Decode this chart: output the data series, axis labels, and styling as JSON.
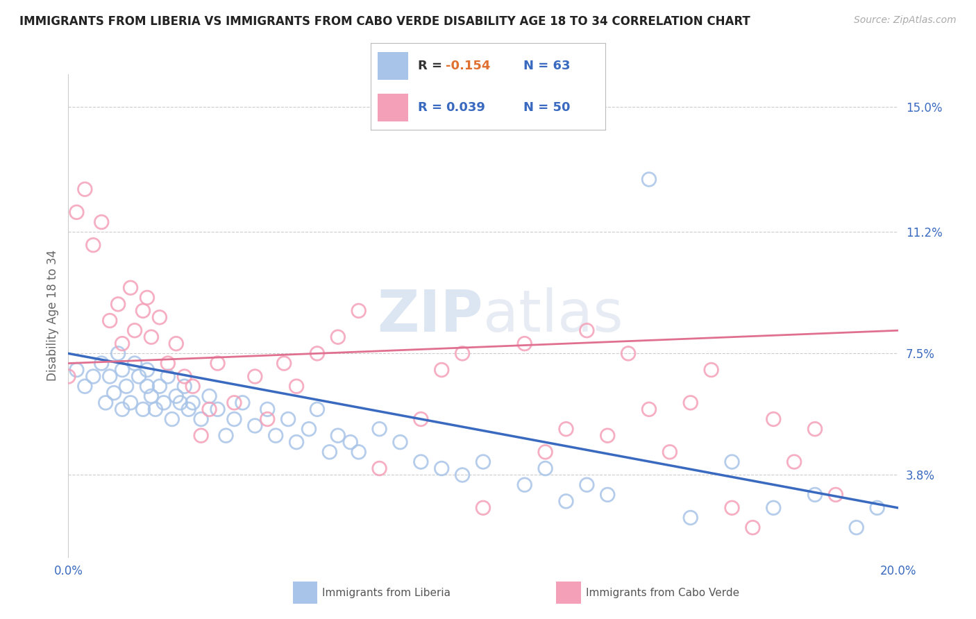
{
  "title": "IMMIGRANTS FROM LIBERIA VS IMMIGRANTS FROM CABO VERDE DISABILITY AGE 18 TO 34 CORRELATION CHART",
  "source": "Source: ZipAtlas.com",
  "ylabel": "Disability Age 18 to 34",
  "xlim": [
    0.0,
    0.2
  ],
  "ylim": [
    0.013,
    0.16
  ],
  "xticks": [
    0.0,
    0.04,
    0.08,
    0.12,
    0.16,
    0.2
  ],
  "xticklabels": [
    "0.0%",
    "",
    "",
    "",
    "",
    "20.0%"
  ],
  "ytick_positions": [
    0.038,
    0.075,
    0.112,
    0.15
  ],
  "ytick_labels": [
    "3.8%",
    "7.5%",
    "11.2%",
    "15.0%"
  ],
  "legend_r1": "R = -0.154",
  "legend_n1": "N = 63",
  "legend_r2": "R =  0.039",
  "legend_n2": "N = 50",
  "color_liberia": "#a8c4e8",
  "color_cabo_verde": "#f4a0b8",
  "color_text_blue": "#3a6abf",
  "color_r_value": "#e07030",
  "watermark_zip": "ZIP",
  "watermark_atlas": "atlas",
  "liberia_scatter_x": [
    0.002,
    0.004,
    0.006,
    0.008,
    0.009,
    0.01,
    0.011,
    0.012,
    0.013,
    0.013,
    0.014,
    0.015,
    0.016,
    0.017,
    0.018,
    0.019,
    0.019,
    0.02,
    0.021,
    0.022,
    0.023,
    0.024,
    0.025,
    0.026,
    0.027,
    0.028,
    0.029,
    0.03,
    0.032,
    0.034,
    0.036,
    0.038,
    0.04,
    0.042,
    0.045,
    0.048,
    0.05,
    0.053,
    0.055,
    0.058,
    0.06,
    0.063,
    0.065,
    0.068,
    0.07,
    0.075,
    0.08,
    0.085,
    0.09,
    0.095,
    0.1,
    0.11,
    0.115,
    0.12,
    0.125,
    0.13,
    0.14,
    0.15,
    0.16,
    0.17,
    0.18,
    0.19,
    0.195
  ],
  "liberia_scatter_y": [
    0.07,
    0.065,
    0.068,
    0.072,
    0.06,
    0.068,
    0.063,
    0.075,
    0.058,
    0.07,
    0.065,
    0.06,
    0.072,
    0.068,
    0.058,
    0.065,
    0.07,
    0.062,
    0.058,
    0.065,
    0.06,
    0.068,
    0.055,
    0.062,
    0.06,
    0.065,
    0.058,
    0.06,
    0.055,
    0.062,
    0.058,
    0.05,
    0.055,
    0.06,
    0.053,
    0.058,
    0.05,
    0.055,
    0.048,
    0.052,
    0.058,
    0.045,
    0.05,
    0.048,
    0.045,
    0.052,
    0.048,
    0.042,
    0.04,
    0.038,
    0.042,
    0.035,
    0.04,
    0.03,
    0.035,
    0.032,
    0.128,
    0.025,
    0.042,
    0.028,
    0.032,
    0.022,
    0.028
  ],
  "cabo_verde_scatter_x": [
    0.0,
    0.002,
    0.004,
    0.006,
    0.008,
    0.01,
    0.012,
    0.013,
    0.015,
    0.016,
    0.018,
    0.019,
    0.02,
    0.022,
    0.024,
    0.026,
    0.028,
    0.03,
    0.032,
    0.034,
    0.036,
    0.04,
    0.045,
    0.048,
    0.052,
    0.055,
    0.06,
    0.065,
    0.07,
    0.075,
    0.085,
    0.09,
    0.095,
    0.1,
    0.11,
    0.115,
    0.12,
    0.125,
    0.13,
    0.135,
    0.14,
    0.145,
    0.15,
    0.155,
    0.16,
    0.165,
    0.17,
    0.175,
    0.18,
    0.185
  ],
  "cabo_verde_scatter_y": [
    0.068,
    0.118,
    0.125,
    0.108,
    0.115,
    0.085,
    0.09,
    0.078,
    0.095,
    0.082,
    0.088,
    0.092,
    0.08,
    0.086,
    0.072,
    0.078,
    0.068,
    0.065,
    0.05,
    0.058,
    0.072,
    0.06,
    0.068,
    0.055,
    0.072,
    0.065,
    0.075,
    0.08,
    0.088,
    0.04,
    0.055,
    0.07,
    0.075,
    0.028,
    0.078,
    0.045,
    0.052,
    0.082,
    0.05,
    0.075,
    0.058,
    0.045,
    0.06,
    0.07,
    0.028,
    0.022,
    0.055,
    0.042,
    0.052,
    0.032
  ],
  "liberia_trend_x": [
    0.0,
    0.2
  ],
  "liberia_trend_y_start": 0.075,
  "liberia_trend_y_end": 0.028,
  "cabo_verde_trend_x": [
    0.0,
    0.2
  ],
  "cabo_verde_trend_y_start": 0.072,
  "cabo_verde_trend_y_end": 0.082,
  "grid_color": "#cccccc",
  "background_color": "#ffffff",
  "bottom_legend_liberia": "Immigrants from Liberia",
  "bottom_legend_cabo": "Immigrants from Cabo Verde"
}
